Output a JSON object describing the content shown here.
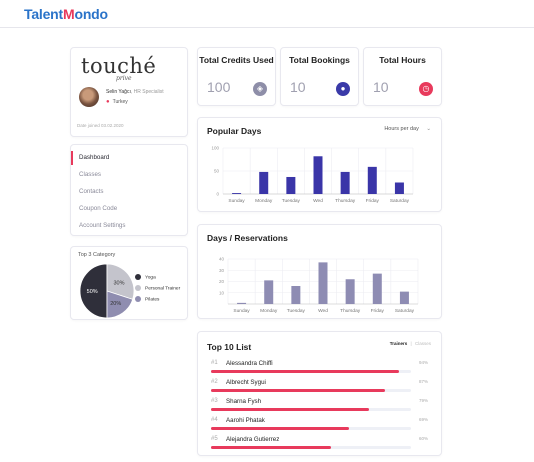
{
  "app": {
    "logo_prefix": "Talent",
    "logo_heart": "M",
    "logo_suffix": "ondo"
  },
  "profile": {
    "brand": "touché",
    "brand_sub": "prive",
    "name": "Selin Yağcı",
    "role": "HR Specialist",
    "location": "Turkey",
    "date_joined": "Date joined 03.02.2020"
  },
  "nav": {
    "items": [
      {
        "label": "Dashboard",
        "active": true
      },
      {
        "label": "Classes",
        "active": false
      },
      {
        "label": "Contacts",
        "active": false
      },
      {
        "label": "Coupon Code",
        "active": false
      },
      {
        "label": "Account Settings",
        "active": false
      }
    ]
  },
  "category": {
    "title": "Top 3 Category",
    "slices": [
      {
        "name": "Yoga",
        "value": 50,
        "label": "50%",
        "color": "#2f2f3a"
      },
      {
        "name": "Personal Trainer",
        "value": 30,
        "label": "30%",
        "color": "#c4c4cc"
      },
      {
        "name": "Pilates",
        "value": 20,
        "label": "20%",
        "color": "#8f8db0"
      }
    ]
  },
  "stats": [
    {
      "title": "Total Credits Used",
      "value": "100",
      "icon": "cube-icon",
      "icon_color": "#8e8ea8"
    },
    {
      "title": "Total Bookings",
      "value": "10",
      "icon": "user-icon",
      "icon_color": "#3a3aa8"
    },
    {
      "title": "Total Hours",
      "value": "10",
      "icon": "clock-icon",
      "icon_color": "#e83a5c"
    }
  ],
  "popular_days": {
    "title": "Popular Days",
    "dropdown_label": "Hours per day"
  },
  "days_reservations": {
    "title": "Days / Reservations"
  },
  "top10": {
    "title": "Top 10 List",
    "tab_active": "Trainers",
    "tab_separator": "|",
    "tab_inactive": "Classes",
    "rows": [
      {
        "rank": "#1",
        "name": "Alessandra Chiffi",
        "pct_label": "94%",
        "pct": 94
      },
      {
        "rank": "#2",
        "name": "Albrecht Sygui",
        "pct_label": "87%",
        "pct": 87
      },
      {
        "rank": "#3",
        "name": "Sharna Fysh",
        "pct_label": "79%",
        "pct": 79
      },
      {
        "rank": "#4",
        "name": "Aarohi Phatak",
        "pct_label": "69%",
        "pct": 69
      },
      {
        "rank": "#5",
        "name": "Alejandra Gutierrez",
        "pct_label": "60%",
        "pct": 60
      }
    ]
  },
  "chart_data": [
    {
      "type": "bar",
      "title": "Popular Days",
      "categories": [
        "Sunday",
        "Monday",
        "Tuesday",
        "Wed",
        "Thursday",
        "Friday",
        "Saturday"
      ],
      "values": [
        2,
        48,
        37,
        82,
        48,
        59,
        25
      ],
      "yticks": [
        "100",
        "50",
        "0"
      ],
      "ylim": [
        0,
        100
      ],
      "color": "#3a35a8",
      "grid": true
    },
    {
      "type": "bar",
      "title": "Days / Reservations",
      "categories": [
        "Sunday",
        "Monday",
        "Tuesday",
        "Wed",
        "Thursday",
        "Friday",
        "Saturday"
      ],
      "values": [
        1,
        21,
        16,
        37,
        22,
        27,
        11
      ],
      "yticks": [
        "40",
        "30",
        "20",
        "10"
      ],
      "ylim": [
        0,
        40
      ],
      "color": "#8e8cb3",
      "grid": true
    }
  ]
}
